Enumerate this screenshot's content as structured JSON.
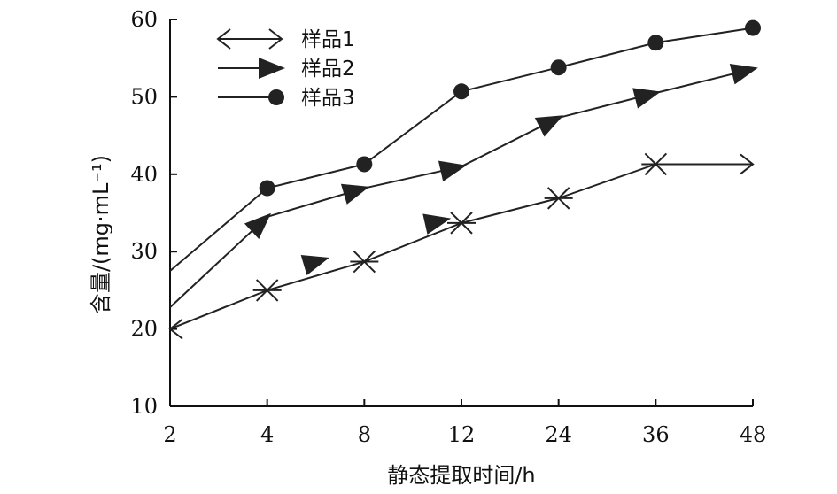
{
  "chart_data": {
    "type": "line",
    "categories": [
      "2",
      "4",
      "8",
      "12",
      "24",
      "36",
      "48"
    ],
    "xlabel": "静态提取时间/h",
    "ylabel": "含量/(mg·mL⁻¹)",
    "ylim": [
      10,
      60
    ],
    "yticks": [
      "10",
      "20",
      "30",
      "40",
      "50",
      "60"
    ],
    "grid": false,
    "legend_position": "top-left",
    "series": [
      {
        "name": "样品1",
        "marker": "x-cross",
        "values": [
          20.0,
          25.0,
          28.7,
          33.7,
          36.9,
          41.3,
          41.3
        ],
        "color": "#222222"
      },
      {
        "name": "样品2",
        "marker": "triangle",
        "values": [
          22.8,
          34.5,
          38.2,
          41.0,
          47.3,
          50.5,
          53.6
        ],
        "color": "#222222"
      },
      {
        "name": "样品3",
        "marker": "circle",
        "values": [
          27.5,
          38.2,
          41.3,
          50.7,
          53.8,
          57.0,
          58.9
        ],
        "color": "#222222"
      }
    ],
    "extra_markers": [
      {
        "series": 1,
        "x_index": 1.5,
        "value": 28.7
      },
      {
        "series": 1,
        "x_index": 2.75,
        "value": 33.9
      }
    ]
  }
}
